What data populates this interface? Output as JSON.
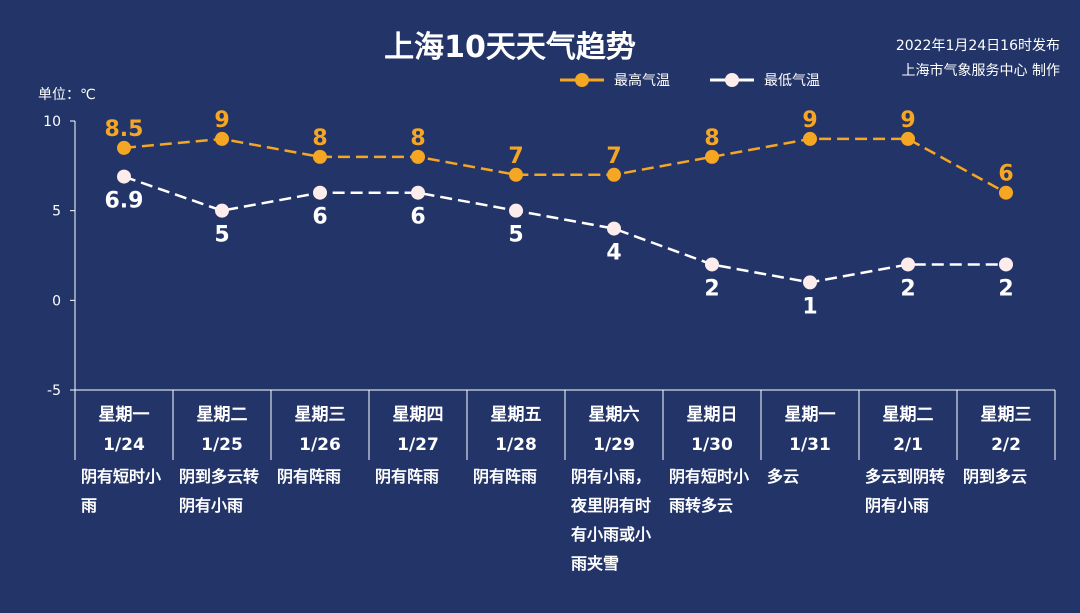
{
  "title": "上海10天天气趋势",
  "publish": {
    "line1": "2022年1月24日16时发布",
    "line2": "上海市气象服务中心 制作"
  },
  "unit_label": "单位：℃",
  "colors": {
    "background": "#233468",
    "high": "#f5a623",
    "low": "#ffffff",
    "grid": "#ffffff"
  },
  "chart_data": {
    "type": "line",
    "title": "上海10天天气趋势",
    "ylabel": "单位：℃",
    "ylim": [
      -5,
      10
    ],
    "yticks": [
      10,
      5,
      0,
      -5
    ],
    "grid": false,
    "legend_position": "top-right",
    "categories": [
      "1/24",
      "1/25",
      "1/26",
      "1/27",
      "1/28",
      "1/29",
      "1/30",
      "1/31",
      "2/1",
      "2/2"
    ],
    "weekdays": [
      "星期一",
      "星期二",
      "星期三",
      "星期四",
      "星期五",
      "星期六",
      "星期日",
      "星期一",
      "星期二",
      "星期三"
    ],
    "weather": [
      "阴有短时小雨",
      "阴到多云转阴有小雨",
      "阴有阵雨",
      "阴有阵雨",
      "阴有阵雨",
      "阴有小雨，夜里阴有时有小雨或小雨夹雪",
      "阴有短时小雨转多云",
      "多云",
      "多云到阴转阴有小雨",
      "阴到多云"
    ],
    "series": [
      {
        "name": "最高气温",
        "values": [
          8.5,
          9,
          8,
          8,
          7,
          7,
          8,
          9,
          9,
          6
        ]
      },
      {
        "name": "最低气温",
        "values": [
          6.9,
          5,
          6,
          6,
          5,
          4,
          2,
          1,
          2,
          2
        ]
      }
    ]
  }
}
